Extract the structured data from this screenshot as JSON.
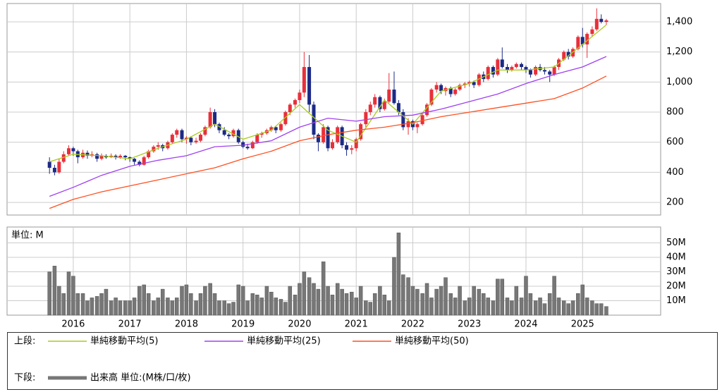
{
  "chart_data": [
    {
      "type": "candlestick",
      "legend_label": "上段:",
      "ylim": [
        116,
        1522
      ],
      "xlim": [
        2014.83,
        2026.38
      ],
      "yticks": [
        200,
        400,
        600,
        800,
        {
          "value": 1000,
          "label": "1,000"
        },
        {
          "value": 1200,
          "label": "1,200"
        },
        {
          "value": 1400,
          "label": "1,400"
        }
      ],
      "xticks": [
        2016,
        2017,
        2018,
        2019,
        2020,
        2021,
        2022,
        2023,
        2024,
        2025
      ],
      "grid": true,
      "up_color": "#e8303a",
      "down_color": "#1c2a86",
      "x": [
        2015.58,
        2015.67,
        2015.75,
        2015.83,
        2015.92,
        2016,
        2016.08,
        2016.17,
        2016.25,
        2016.33,
        2016.42,
        2016.5,
        2016.58,
        2016.67,
        2016.75,
        2016.83,
        2016.92,
        2017,
        2017.08,
        2017.17,
        2017.25,
        2017.33,
        2017.42,
        2017.5,
        2017.58,
        2017.67,
        2017.75,
        2017.83,
        2017.92,
        2018,
        2018.08,
        2018.17,
        2018.25,
        2018.33,
        2018.42,
        2018.5,
        2018.58,
        2018.67,
        2018.75,
        2018.83,
        2018.92,
        2019,
        2019.08,
        2019.17,
        2019.25,
        2019.33,
        2019.42,
        2019.5,
        2019.58,
        2019.67,
        2019.75,
        2019.83,
        2019.92,
        2020,
        2020.08,
        2020.17,
        2020.25,
        2020.33,
        2020.42,
        2020.5,
        2020.58,
        2020.67,
        2020.75,
        2020.83,
        2020.92,
        2021,
        2021.08,
        2021.17,
        2021.25,
        2021.33,
        2021.42,
        2021.5,
        2021.58,
        2021.67,
        2021.75,
        2021.83,
        2021.92,
        2022,
        2022.08,
        2022.17,
        2022.25,
        2022.33,
        2022.42,
        2022.5,
        2022.58,
        2022.67,
        2022.75,
        2022.83,
        2022.92,
        2023,
        2023.08,
        2023.17,
        2023.25,
        2023.33,
        2023.42,
        2023.5,
        2023.58,
        2023.67,
        2023.75,
        2023.83,
        2023.92,
        2024,
        2024.08,
        2024.17,
        2024.25,
        2024.33,
        2024.42,
        2024.5,
        2024.58,
        2024.67,
        2024.75,
        2024.83,
        2024.92,
        2025,
        2025.08,
        2025.17,
        2025.25,
        2025.33,
        2025.42
      ],
      "open": [
        470,
        430,
        400,
        470,
        520,
        560,
        540,
        500,
        530,
        510,
        520,
        490,
        510,
        500,
        510,
        500,
        510,
        500,
        490,
        470,
        450,
        500,
        540,
        570,
        580,
        560,
        600,
        650,
        680,
        620,
        630,
        600,
        610,
        650,
        700,
        800,
        720,
        680,
        650,
        640,
        680,
        600,
        570,
        560,
        600,
        650,
        660,
        680,
        700,
        680,
        720,
        800,
        850,
        880,
        930,
        1100,
        850,
        650,
        600,
        700,
        560,
        600,
        700,
        580,
        550,
        560,
        620,
        720,
        800,
        850,
        900,
        820,
        870,
        950,
        860,
        800,
        700,
        740,
        700,
        720,
        780,
        850,
        950,
        980,
        940,
        960,
        920,
        950,
        980,
        990,
        1000,
        980,
        1050,
        1020,
        1100,
        1050,
        1150,
        1100,
        1080,
        1100,
        1120,
        1100,
        1080,
        1050,
        1100,
        1080,
        1070,
        1050,
        1100,
        1150,
        1200,
        1170,
        1220,
        1300,
        1250,
        1320,
        1350,
        1420,
        1400
      ],
      "high": [
        500,
        450,
        490,
        540,
        580,
        570,
        550,
        550,
        545,
        540,
        530,
        525,
        520,
        525,
        520,
        520,
        515,
        505,
        495,
        480,
        510,
        550,
        580,
        600,
        590,
        610,
        660,
        690,
        690,
        640,
        640,
        630,
        660,
        710,
        830,
        820,
        730,
        700,
        660,
        690,
        690,
        610,
        590,
        610,
        660,
        670,
        690,
        710,
        705,
        730,
        810,
        860,
        890,
        950,
        1200,
        1180,
        870,
        660,
        720,
        710,
        620,
        710,
        710,
        600,
        580,
        630,
        730,
        820,
        870,
        920,
        910,
        890,
        1060,
        1070,
        880,
        820,
        760,
        750,
        730,
        790,
        860,
        960,
        1000,
        990,
        970,
        970,
        960,
        990,
        1000,
        1010,
        1010,
        1060,
        1070,
        1110,
        1110,
        1160,
        1230,
        1120,
        1110,
        1130,
        1130,
        1110,
        1090,
        1110,
        1120,
        1100,
        1080,
        1110,
        1160,
        1210,
        1220,
        1230,
        1310,
        1360,
        1330,
        1370,
        1490,
        1450,
        1420
      ],
      "low": [
        390,
        380,
        390,
        460,
        510,
        510,
        460,
        490,
        490,
        500,
        470,
        480,
        490,
        495,
        485,
        490,
        480,
        470,
        450,
        440,
        445,
        490,
        530,
        550,
        540,
        550,
        590,
        630,
        600,
        590,
        580,
        590,
        600,
        640,
        690,
        700,
        660,
        640,
        620,
        630,
        590,
        560,
        550,
        555,
        590,
        630,
        650,
        670,
        660,
        670,
        710,
        780,
        830,
        860,
        900,
        800,
        620,
        540,
        590,
        540,
        550,
        590,
        560,
        510,
        520,
        540,
        610,
        700,
        780,
        830,
        800,
        810,
        860,
        850,
        780,
        680,
        650,
        680,
        660,
        710,
        770,
        840,
        930,
        920,
        910,
        900,
        910,
        940,
        960,
        970,
        960,
        970,
        1000,
        1010,
        1030,
        1040,
        1090,
        1060,
        1070,
        1090,
        1080,
        1060,
        1030,
        1040,
        1070,
        1050,
        1000,
        1040,
        1080,
        1140,
        1150,
        1160,
        1210,
        1230,
        1160,
        1300,
        1340,
        1390,
        1380
      ],
      "close": [
        430,
        400,
        470,
        520,
        560,
        540,
        500,
        530,
        510,
        520,
        490,
        510,
        500,
        510,
        500,
        510,
        500,
        490,
        470,
        450,
        500,
        540,
        570,
        580,
        560,
        600,
        650,
        680,
        620,
        630,
        600,
        610,
        650,
        700,
        800,
        720,
        680,
        650,
        640,
        680,
        600,
        570,
        560,
        600,
        650,
        660,
        680,
        700,
        680,
        720,
        800,
        850,
        880,
        930,
        1100,
        850,
        650,
        600,
        700,
        560,
        600,
        700,
        580,
        550,
        560,
        620,
        720,
        800,
        850,
        900,
        820,
        870,
        950,
        860,
        800,
        700,
        740,
        700,
        720,
        780,
        850,
        950,
        980,
        940,
        960,
        920,
        950,
        980,
        990,
        1000,
        980,
        1050,
        1020,
        1100,
        1050,
        1150,
        1100,
        1080,
        1100,
        1120,
        1100,
        1080,
        1050,
        1100,
        1080,
        1070,
        1050,
        1100,
        1150,
        1200,
        1170,
        1220,
        1300,
        1250,
        1320,
        1350,
        1420,
        1400,
        1410
      ],
      "series": [
        {
          "name": "単純移動平均(5)",
          "color": "#a8cc1c",
          "x": [
            2015.58,
            2016,
            2016.5,
            2017,
            2017.5,
            2018,
            2018.5,
            2019,
            2019.5,
            2020,
            2020.5,
            2021,
            2021.5,
            2022,
            2022.5,
            2023,
            2023.5,
            2024,
            2024.5,
            2025,
            2025.42
          ],
          "values": [
            470,
            520,
            510,
            490,
            560,
            620,
            720,
            620,
            680,
            850,
            680,
            600,
            880,
            720,
            940,
            990,
            1080,
            1080,
            1100,
            1250,
            1380
          ]
        },
        {
          "name": "単純移動平均(25)",
          "color": "#a040f0",
          "x": [
            2015.58,
            2016,
            2016.5,
            2017,
            2017.5,
            2018,
            2018.5,
            2019,
            2019.5,
            2020,
            2020.5,
            2021,
            2021.5,
            2022,
            2022.5,
            2023,
            2023.5,
            2024,
            2024.5,
            2025,
            2025.42
          ],
          "values": [
            240,
            300,
            380,
            440,
            480,
            510,
            570,
            580,
            610,
            700,
            760,
            740,
            770,
            780,
            820,
            870,
            920,
            990,
            1050,
            1100,
            1170
          ]
        },
        {
          "name": "単純移動平均(50)",
          "color": "#ff5020",
          "x": [
            2015.58,
            2016,
            2016.5,
            2017,
            2017.5,
            2018,
            2018.5,
            2019,
            2019.5,
            2020,
            2020.5,
            2021,
            2021.5,
            2022,
            2022.5,
            2023,
            2023.5,
            2024,
            2024.5,
            2025,
            2025.42
          ],
          "values": [
            160,
            220,
            270,
            310,
            350,
            390,
            430,
            490,
            540,
            610,
            650,
            680,
            700,
            730,
            770,
            800,
            830,
            860,
            890,
            960,
            1040
          ]
        }
      ]
    },
    {
      "type": "bar",
      "legend_label": "下段:",
      "unit_label": "単位: M",
      "ylim": [
        0,
        61
      ],
      "xlim": [
        2014.83,
        2026.38
      ],
      "yticks": [
        {
          "value": 10,
          "label": "10M"
        },
        {
          "value": 20,
          "label": "20M"
        },
        {
          "value": 30,
          "label": "30M"
        },
        {
          "value": 40,
          "label": "40M"
        },
        {
          "value": 50,
          "label": "50M"
        }
      ],
      "xticks": [
        2016,
        2017,
        2018,
        2019,
        2020,
        2021,
        2022,
        2023,
        2024,
        2025
      ],
      "grid": true,
      "series": [
        {
          "name": "出来高 単位:(M株/口/枚)",
          "color": "#777777",
          "x": [
            2015.58,
            2015.67,
            2015.75,
            2015.83,
            2015.92,
            2016,
            2016.08,
            2016.17,
            2016.25,
            2016.33,
            2016.42,
            2016.5,
            2016.58,
            2016.67,
            2016.75,
            2016.83,
            2016.92,
            2017,
            2017.08,
            2017.17,
            2017.25,
            2017.33,
            2017.42,
            2017.5,
            2017.58,
            2017.67,
            2017.75,
            2017.83,
            2017.92,
            2018,
            2018.08,
            2018.17,
            2018.25,
            2018.33,
            2018.42,
            2018.5,
            2018.58,
            2018.67,
            2018.75,
            2018.83,
            2018.92,
            2019,
            2019.08,
            2019.17,
            2019.25,
            2019.33,
            2019.42,
            2019.5,
            2019.58,
            2019.67,
            2019.75,
            2019.83,
            2019.92,
            2020,
            2020.08,
            2020.17,
            2020.25,
            2020.33,
            2020.42,
            2020.5,
            2020.58,
            2020.67,
            2020.75,
            2020.83,
            2020.92,
            2021,
            2021.08,
            2021.17,
            2021.25,
            2021.33,
            2021.42,
            2021.5,
            2021.58,
            2021.67,
            2021.75,
            2021.83,
            2021.92,
            2022,
            2022.08,
            2022.17,
            2022.25,
            2022.33,
            2022.42,
            2022.5,
            2022.58,
            2022.67,
            2022.75,
            2022.83,
            2022.92,
            2023,
            2023.08,
            2023.17,
            2023.25,
            2023.33,
            2023.42,
            2023.5,
            2023.58,
            2023.67,
            2023.75,
            2023.83,
            2023.92,
            2024,
            2024.08,
            2024.17,
            2024.25,
            2024.33,
            2024.42,
            2024.5,
            2024.58,
            2024.67,
            2024.75,
            2024.83,
            2024.92,
            2025,
            2025.08,
            2025.17,
            2025.25,
            2025.33,
            2025.42
          ],
          "values": [
            30,
            34,
            20,
            15,
            30,
            27,
            15,
            15,
            10,
            12,
            13,
            15,
            18,
            10,
            12,
            10,
            10,
            10,
            12,
            20,
            21,
            15,
            10,
            12,
            18,
            12,
            10,
            12,
            20,
            21,
            15,
            10,
            15,
            20,
            22,
            15,
            10,
            10,
            8,
            9,
            21,
            20,
            10,
            15,
            14,
            12,
            20,
            16,
            12,
            11,
            9,
            20,
            14,
            22,
            30,
            26,
            22,
            18,
            37,
            20,
            14,
            22,
            18,
            15,
            16,
            12,
            20,
            10,
            9,
            15,
            20,
            14,
            10,
            40,
            57,
            28,
            26,
            20,
            18,
            15,
            22,
            12,
            18,
            20,
            26,
            15,
            12,
            20,
            10,
            12,
            20,
            18,
            15,
            12,
            10,
            25,
            25,
            12,
            10,
            20,
            12,
            27,
            15,
            10,
            12,
            8,
            15,
            27,
            12,
            10,
            8,
            10,
            15,
            21,
            12,
            10,
            8,
            8,
            6
          ]
        }
      ]
    }
  ]
}
